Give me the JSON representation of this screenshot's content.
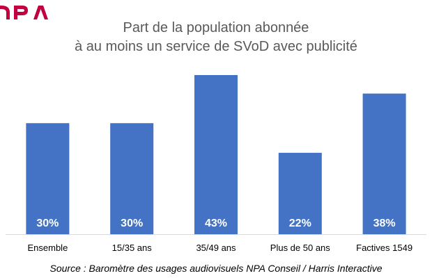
{
  "logo": {
    "text": "NPA",
    "color": "#c00040"
  },
  "chart_data": {
    "type": "bar",
    "title": [
      "Part de la population abonnée",
      "à au moins un service de SVoD avec publicité"
    ],
    "categories": [
      "Ensemble",
      "15/35 ans",
      "35/49 ans",
      "Plus de 50 ans",
      "Factives 1549"
    ],
    "values": [
      30,
      30,
      43,
      22,
      38
    ],
    "value_labels": [
      "30%",
      "30%",
      "43%",
      "22%",
      "38%"
    ],
    "unit": "%",
    "ylim": [
      0,
      50
    ],
    "grid": false,
    "legend": false,
    "colors": {
      "bar": "#4472c4",
      "label": "#ffffff",
      "axis": "#d9d9d9",
      "tick": "#000000"
    }
  },
  "source": "Source : Baromètre des usages audiovisuels NPA Conseil / Harris Interactive"
}
